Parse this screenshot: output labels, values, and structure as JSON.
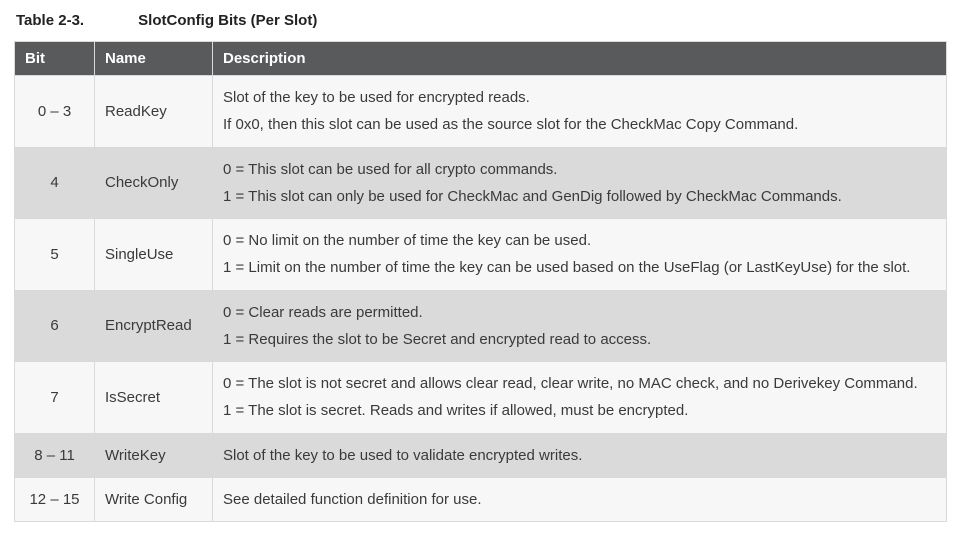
{
  "caption_number": "Table 2-3.",
  "caption_title": "SlotConfig Bits (Per Slot)",
  "columns": [
    "Bit",
    "Name",
    "Description"
  ],
  "rows": [
    {
      "bit": "0 – 3",
      "name": "ReadKey",
      "desc": [
        "Slot of the key to be used for encrypted reads.",
        "If 0x0, then this slot can be used as the source slot for the CheckMac Copy Command."
      ]
    },
    {
      "bit": "4",
      "name": "CheckOnly",
      "desc": [
        "0 = This slot can be used for all crypto commands.",
        "1 = This slot can only be used for CheckMac and GenDig followed by CheckMac Commands."
      ]
    },
    {
      "bit": "5",
      "name": "SingleUse",
      "desc": [
        "0 = No limit on the number of time the key can be used.",
        "1 = Limit on the number of time the key can be used based on the UseFlag (or LastKeyUse) for the slot."
      ]
    },
    {
      "bit": "6",
      "name": "EncryptRead",
      "desc": [
        "0 = Clear reads are permitted.",
        "1 = Requires the slot to be Secret and encrypted read to access."
      ]
    },
    {
      "bit": "7",
      "name": "IsSecret",
      "desc": [
        "0 = The slot is not secret and allows clear read, clear write, no MAC check, and no Derivekey Command.",
        "1 = The slot is secret. Reads and writes if allowed, must be encrypted."
      ]
    },
    {
      "bit": "8 – 11",
      "name": "WriteKey",
      "desc": [
        "Slot of the key to be used to validate encrypted writes."
      ]
    },
    {
      "bit": "12 – 15",
      "name": "Write Config",
      "desc": [
        "See detailed function definition for use."
      ]
    }
  ]
}
